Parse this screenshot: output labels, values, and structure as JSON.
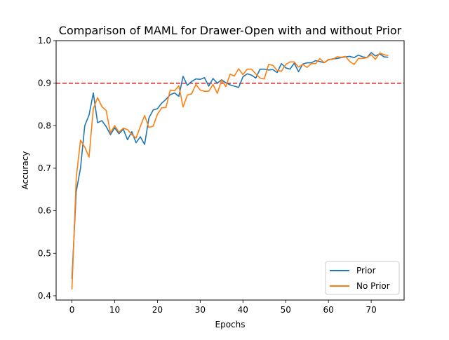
{
  "chart_data": {
    "type": "line",
    "title": "Comparison of MAML for Drawer-Open with and without Prior",
    "xlabel": "Epochs",
    "ylabel": "Accuracy",
    "xlim": [
      -3.7,
      77.7
    ],
    "ylim": [
      0.39,
      1.0
    ],
    "xticks": [
      0,
      10,
      20,
      30,
      40,
      50,
      60,
      70
    ],
    "yticks": [
      0.4,
      0.5,
      0.6,
      0.7,
      0.8,
      0.9,
      1.0
    ],
    "xtick_labels": [
      "0",
      "10",
      "20",
      "30",
      "40",
      "50",
      "60",
      "70"
    ],
    "ytick_labels": [
      "0.4",
      "0.5",
      "0.6",
      "0.7",
      "0.8",
      "0.9",
      "1.0"
    ],
    "grid": false,
    "legend_position": "lower right",
    "reference_line": {
      "y": 0.9,
      "style": "dashed",
      "color": "#d62728"
    },
    "x": [
      0,
      1,
      2,
      3,
      4,
      5,
      6,
      7,
      8,
      9,
      10,
      11,
      12,
      13,
      14,
      15,
      16,
      17,
      18,
      19,
      20,
      21,
      22,
      23,
      24,
      25,
      26,
      27,
      28,
      29,
      30,
      31,
      32,
      33,
      34,
      35,
      36,
      37,
      38,
      39,
      40,
      41,
      42,
      43,
      44,
      45,
      46,
      47,
      48,
      49,
      50,
      51,
      52,
      53,
      54,
      55,
      56,
      57,
      58,
      59,
      60,
      61,
      62,
      63,
      64,
      65,
      66,
      67,
      68,
      69,
      70,
      71,
      72,
      73,
      74
    ],
    "series": [
      {
        "name": "Prior",
        "color": "#1f77b4",
        "values": [
          0.44,
          0.645,
          0.7,
          0.8,
          0.825,
          0.877,
          0.807,
          0.812,
          0.798,
          0.779,
          0.795,
          0.781,
          0.792,
          0.767,
          0.786,
          0.76,
          0.774,
          0.756,
          0.818,
          0.837,
          0.84,
          0.853,
          0.862,
          0.873,
          0.877,
          0.869,
          0.916,
          0.895,
          0.904,
          0.91,
          0.909,
          0.913,
          0.893,
          0.911,
          0.9,
          0.908,
          0.901,
          0.896,
          0.893,
          0.89,
          0.915,
          0.922,
          0.919,
          0.912,
          0.933,
          0.933,
          0.931,
          0.932,
          0.925,
          0.946,
          0.936,
          0.933,
          0.947,
          0.927,
          0.945,
          0.948,
          0.948,
          0.953,
          0.951,
          0.948,
          0.955,
          0.957,
          0.958,
          0.96,
          0.962,
          0.963,
          0.96,
          0.966,
          0.962,
          0.96,
          0.972,
          0.964,
          0.969,
          0.962,
          0.961
        ]
      },
      {
        "name": "No Prior",
        "color": "#ff7f0e",
        "values": [
          0.415,
          0.677,
          0.766,
          0.75,
          0.726,
          0.84,
          0.866,
          0.845,
          0.836,
          0.783,
          0.8,
          0.785,
          0.794,
          0.791,
          0.779,
          0.771,
          0.798,
          0.824,
          0.796,
          0.799,
          0.827,
          0.842,
          0.843,
          0.884,
          0.882,
          0.894,
          0.844,
          0.872,
          0.875,
          0.897,
          0.884,
          0.881,
          0.881,
          0.897,
          0.876,
          0.907,
          0.892,
          0.921,
          0.917,
          0.934,
          0.92,
          0.933,
          0.933,
          0.922,
          0.912,
          0.91,
          0.944,
          0.942,
          0.93,
          0.928,
          0.944,
          0.95,
          0.95,
          0.938,
          0.944,
          0.937,
          0.946,
          0.946,
          0.958,
          0.948,
          0.956,
          0.956,
          0.962,
          0.961,
          0.963,
          0.951,
          0.944,
          0.958,
          0.958,
          0.96,
          0.967,
          0.956,
          0.971,
          0.967,
          0.965
        ]
      }
    ]
  }
}
